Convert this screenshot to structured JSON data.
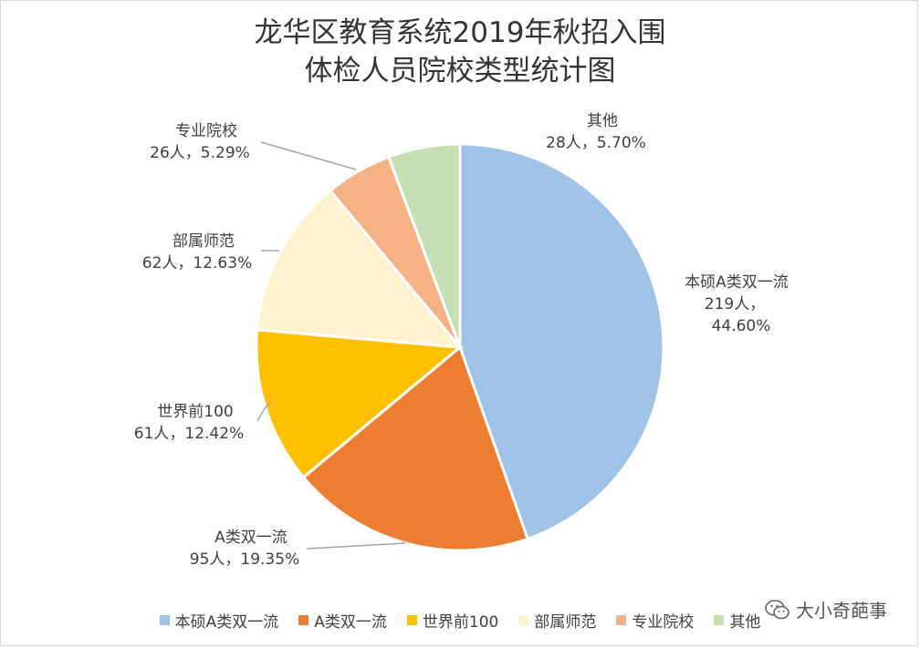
{
  "title": {
    "line1": "龙华区教育系统2019年秋招入围",
    "line2": "体检人员院校类型统计图"
  },
  "watermark": "大小奇葩事",
  "chart_data": {
    "type": "pie",
    "title": "龙华区教育系统2019年秋招入围体检人员院校类型统计图",
    "start_angle_deg": 0,
    "direction": "clockwise",
    "legend_position": "bottom",
    "slices": [
      {
        "name": "本硕A类双一流",
        "value": 219,
        "percent": "44.60%",
        "count_label": "219人，",
        "color": "#9dc3e6"
      },
      {
        "name": "A类双一流",
        "value": 95,
        "percent": "19.35%",
        "count_label": "95人，19.35%",
        "color": "#ed7d31"
      },
      {
        "name": "世界前100",
        "value": 61,
        "percent": "12.42%",
        "count_label": "61人，12.42%",
        "color": "#ffc000"
      },
      {
        "name": "部属师范",
        "value": 62,
        "percent": "12.63%",
        "count_label": "62人，12.63%",
        "color": "#fff2cc"
      },
      {
        "name": "专业院校",
        "value": 26,
        "percent": "5.29%",
        "count_label": "26人，5.29%",
        "color": "#f4b183"
      },
      {
        "name": "其他",
        "value": 28,
        "percent": "5.70%",
        "count_label": "28人，5.70%",
        "color": "#c5e0b4"
      }
    ]
  }
}
